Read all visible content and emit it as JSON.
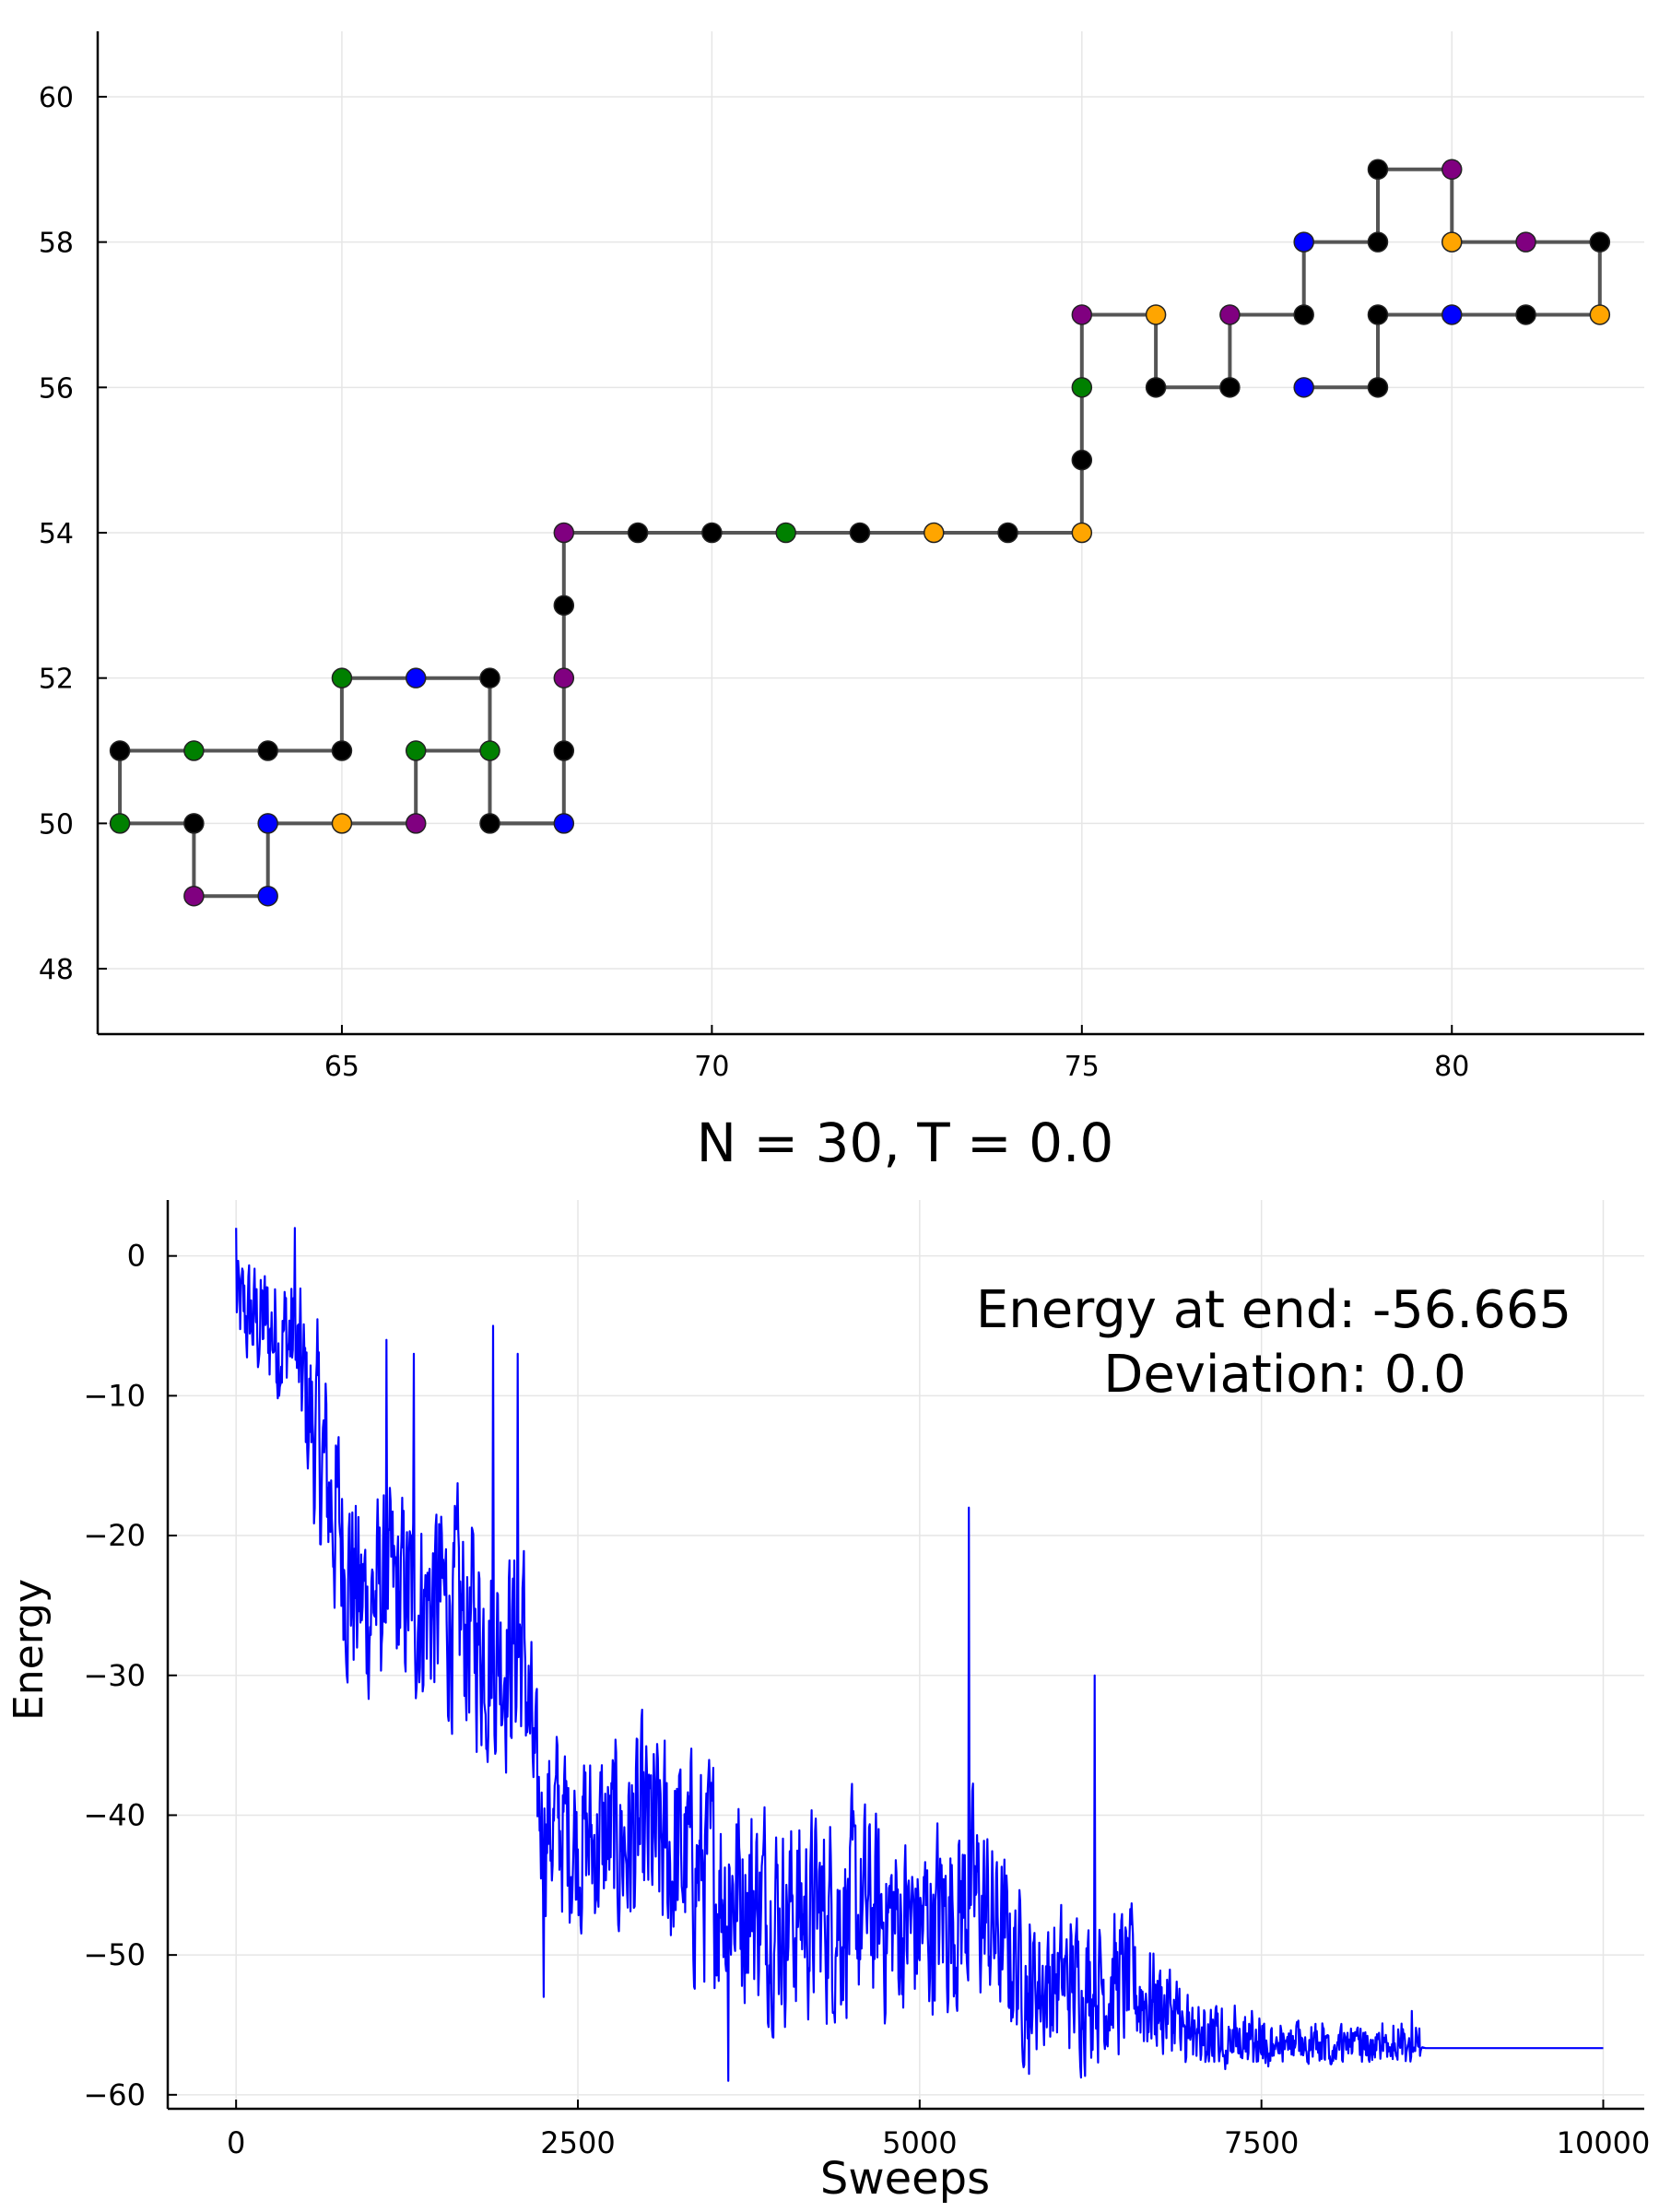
{
  "chart_data": [
    {
      "type": "scatter",
      "title": "",
      "xlabel": "",
      "ylabel": "",
      "xlim": [
        61.7,
        82.6
      ],
      "ylim": [
        47.1,
        60.9
      ],
      "x_ticks": [
        65,
        70,
        75,
        80
      ],
      "y_ticks": [
        48,
        50,
        52,
        54,
        56,
        58,
        60
      ],
      "grid": true,
      "legend": "none",
      "line_color": "#555555",
      "points": [
        {
          "x": 63,
          "y": 49,
          "color": "purple"
        },
        {
          "x": 64,
          "y": 49,
          "color": "blue"
        },
        {
          "x": 64,
          "y": 50,
          "color": "blue"
        },
        {
          "x": 65,
          "y": 50,
          "color": "orange"
        },
        {
          "x": 66,
          "y": 50,
          "color": "purple"
        },
        {
          "x": 66,
          "y": 51,
          "color": "green"
        },
        {
          "x": 67,
          "y": 51,
          "color": "green"
        },
        {
          "x": 67,
          "y": 50,
          "color": "black"
        },
        {
          "x": 68,
          "y": 50,
          "color": "blue"
        },
        {
          "x": 68,
          "y": 51,
          "color": "black"
        },
        {
          "x": 68,
          "y": 52,
          "color": "purple"
        },
        {
          "x": 68,
          "y": 53,
          "color": "black"
        },
        {
          "x": 68,
          "y": 54,
          "color": "purple"
        },
        {
          "x": 69,
          "y": 54,
          "color": "black"
        },
        {
          "x": 70,
          "y": 54,
          "color": "black"
        },
        {
          "x": 71,
          "y": 54,
          "color": "green"
        },
        {
          "x": 72,
          "y": 54,
          "color": "black"
        },
        {
          "x": 73,
          "y": 54,
          "color": "orange"
        },
        {
          "x": 74,
          "y": 54,
          "color": "black"
        },
        {
          "x": 75,
          "y": 54,
          "color": "orange"
        },
        {
          "x": 75,
          "y": 55,
          "color": "black"
        },
        {
          "x": 75,
          "y": 56,
          "color": "green"
        },
        {
          "x": 75,
          "y": 57,
          "color": "purple"
        },
        {
          "x": 76,
          "y": 57,
          "color": "orange"
        },
        {
          "x": 76,
          "y": 56,
          "color": "black"
        },
        {
          "x": 77,
          "y": 56,
          "color": "black"
        },
        {
          "x": 77,
          "y": 57,
          "color": "purple"
        },
        {
          "x": 78,
          "y": 57,
          "color": "black"
        },
        {
          "x": 78,
          "y": 58,
          "color": "blue"
        },
        {
          "x": 79,
          "y": 58,
          "color": "black"
        },
        {
          "x": 79,
          "y": 59,
          "color": "black"
        },
        {
          "x": 80,
          "y": 59,
          "color": "purple"
        },
        {
          "x": 80,
          "y": 58,
          "color": "orange"
        },
        {
          "x": 81,
          "y": 58,
          "color": "purple"
        },
        {
          "x": 82,
          "y": 58,
          "color": "black"
        },
        {
          "x": 82,
          "y": 57,
          "color": "orange"
        },
        {
          "x": 81,
          "y": 57,
          "color": "black"
        },
        {
          "x": 80,
          "y": 57,
          "color": "blue"
        },
        {
          "x": 79,
          "y": 57,
          "color": "black"
        },
        {
          "x": 79,
          "y": 56,
          "color": "black"
        },
        {
          "x": 78,
          "y": 56,
          "color": "blue"
        }
      ],
      "branch_points": [
        {
          "x": 68,
          "y": 50,
          "color": "blue"
        },
        {
          "x": 67,
          "y": 50,
          "color": "black"
        },
        {
          "x": 67,
          "y": 51,
          "color": "green"
        },
        {
          "x": 67,
          "y": 52,
          "color": "black"
        },
        {
          "x": 66,
          "y": 52,
          "color": "blue"
        },
        {
          "x": 65,
          "y": 52,
          "color": "green"
        },
        {
          "x": 65,
          "y": 51,
          "color": "black"
        },
        {
          "x": 64,
          "y": 51,
          "color": "black"
        },
        {
          "x": 63,
          "y": 51,
          "color": "green"
        },
        {
          "x": 62,
          "y": 51,
          "color": "black"
        },
        {
          "x": 62,
          "y": 50,
          "color": "green"
        },
        {
          "x": 63,
          "y": 50,
          "color": "black"
        },
        {
          "x": 63,
          "y": 49,
          "color": "purple"
        }
      ]
    },
    {
      "type": "line",
      "title": "N = 30, T = 0.0",
      "xlabel": "Sweeps",
      "ylabel": "Energy",
      "xlim": [
        -500,
        10300
      ],
      "ylim": [
        -61,
        4
      ],
      "x_ticks": [
        0,
        2500,
        5000,
        7500,
        10000
      ],
      "y_ticks": [
        0,
        -10,
        -20,
        -30,
        -40,
        -50,
        -60
      ],
      "grid": true,
      "legend": "none",
      "annotation": [
        "Energy at end: -56.665",
        "Deviation: 0.0"
      ],
      "series": [
        {
          "color": "#0000ff",
          "x_range": [
            0,
            10000
          ],
          "final_value": -56.665,
          "envelope": [
            {
              "x": 0,
              "center": -4,
              "amp": 6
            },
            {
              "x": 400,
              "center": -6,
              "amp": 8
            },
            {
              "x": 600,
              "center": -14,
              "amp": 12
            },
            {
              "x": 900,
              "center": -25,
              "amp": 12
            },
            {
              "x": 1100,
              "center": -24,
              "amp": 10
            },
            {
              "x": 1500,
              "center": -25,
              "amp": 12
            },
            {
              "x": 1900,
              "center": -28,
              "amp": 12
            },
            {
              "x": 2100,
              "center": -28,
              "amp": 12
            },
            {
              "x": 2200,
              "center": -40,
              "amp": 10
            },
            {
              "x": 2600,
              "center": -42,
              "amp": 10
            },
            {
              "x": 3000,
              "center": -42,
              "amp": 12
            },
            {
              "x": 3600,
              "center": -45,
              "amp": 12
            },
            {
              "x": 4000,
              "center": -47,
              "amp": 11
            },
            {
              "x": 4600,
              "center": -47,
              "amp": 11
            },
            {
              "x": 5000,
              "center": -48,
              "amp": 10
            },
            {
              "x": 5400,
              "center": -46,
              "amp": 11
            },
            {
              "x": 5800,
              "center": -52,
              "amp": 8
            },
            {
              "x": 6500,
              "center": -52,
              "amp": 8
            },
            {
              "x": 7000,
              "center": -55,
              "amp": 4
            },
            {
              "x": 7600,
              "center": -56,
              "amp": 3
            },
            {
              "x": 8300,
              "center": -56.5,
              "amp": 2
            },
            {
              "x": 8700,
              "center": -56.665,
              "amp": 0
            },
            {
              "x": 10000,
              "center": -56.665,
              "amp": 0
            }
          ],
          "spikes": [
            {
              "x": 0,
              "y": 2
            },
            {
              "x": 430,
              "y": 2
            },
            {
              "x": 1100,
              "y": -6
            },
            {
              "x": 1300,
              "y": -7
            },
            {
              "x": 1880,
              "y": -5
            },
            {
              "x": 2060,
              "y": -7
            },
            {
              "x": 2250,
              "y": -53
            },
            {
              "x": 3600,
              "y": -59
            },
            {
              "x": 5360,
              "y": -18
            },
            {
              "x": 5800,
              "y": -58.5
            },
            {
              "x": 6280,
              "y": -30
            },
            {
              "x": 8600,
              "y": -54
            }
          ]
        }
      ]
    }
  ]
}
